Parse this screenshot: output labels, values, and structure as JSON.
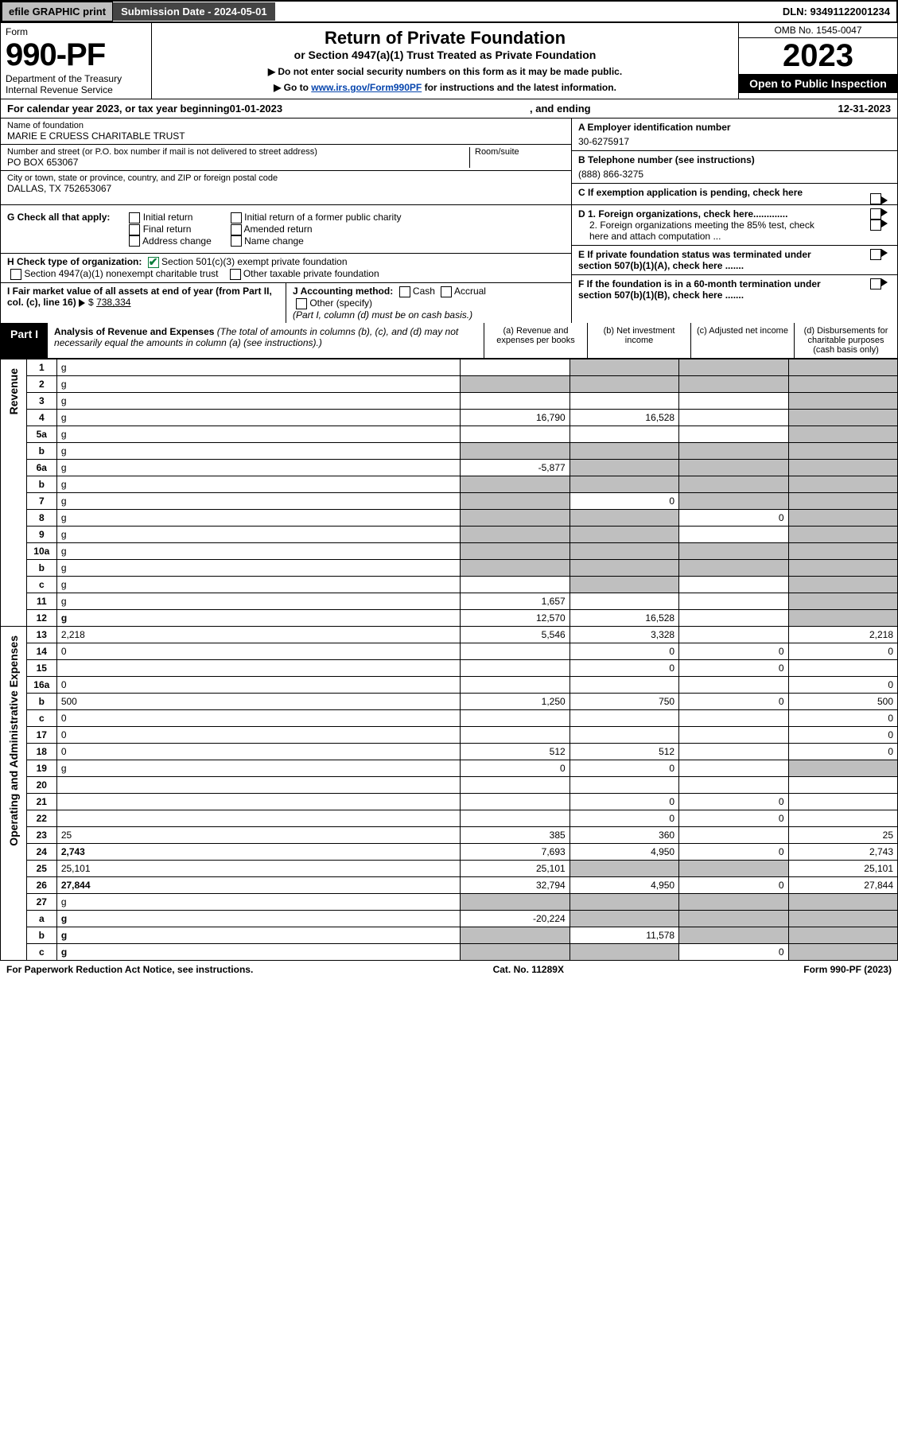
{
  "header": {
    "efile": "efile GRAPHIC print",
    "submission": "Submission Date - 2024-05-01",
    "dln": "DLN: 93491122001234",
    "form_label": "Form",
    "form_number": "990-PF",
    "dept": "Department of the Treasury",
    "irs": "Internal Revenue Service",
    "title": "Return of Private Foundation",
    "subtitle": "or Section 4947(a)(1) Trust Treated as Private Foundation",
    "note1": "▶ Do not enter social security numbers on this form as it may be made public.",
    "note2_pre": "▶ Go to ",
    "note2_link": "www.irs.gov/Form990PF",
    "note2_post": " for instructions and the latest information.",
    "omb": "OMB No. 1545-0047",
    "year": "2023",
    "open": "Open to Public Inspection"
  },
  "calendar": {
    "pre": "For calendar year 2023, or tax year beginning ",
    "begin": "01-01-2023",
    "mid": ", and ending ",
    "end": "12-31-2023"
  },
  "entity": {
    "name_lbl": "Name of foundation",
    "name": "MARIE E CRUESS CHARITABLE TRUST",
    "addr_lbl": "Number and street (or P.O. box number if mail is not delivered to street address)",
    "addr": "PO BOX 653067",
    "room_lbl": "Room/suite",
    "city_lbl": "City or town, state or province, country, and ZIP or foreign postal code",
    "city": "DALLAS, TX  752653067",
    "a_lbl": "A Employer identification number",
    "a_val": "30-6275917",
    "b_lbl": "B Telephone number (see instructions)",
    "b_val": "(888) 866-3275",
    "c_lbl": "C If exemption application is pending, check here",
    "d1_lbl": "D 1. Foreign organizations, check here.............",
    "d2_lbl": "2. Foreign organizations meeting the 85% test, check here and attach computation ...",
    "e_lbl": "E  If private foundation status was terminated under section 507(b)(1)(A), check here .......",
    "f_lbl": "F  If the foundation is in a 60-month termination under section 507(b)(1)(B), check here .......",
    "g_lbl": "G Check all that apply:",
    "g_opts": [
      "Initial return",
      "Final return",
      "Address change",
      "Initial return of a former public charity",
      "Amended return",
      "Name change"
    ],
    "h_lbl": "H Check type of organization:",
    "h1": "Section 501(c)(3) exempt private foundation",
    "h2": "Section 4947(a)(1) nonexempt charitable trust",
    "h3": "Other taxable private foundation",
    "i_lbl": "I Fair market value of all assets at end of year (from Part II, col. (c), line 16)",
    "i_val": "738,334",
    "j_lbl": "J Accounting method:",
    "j_cash": "Cash",
    "j_accr": "Accrual",
    "j_other": "Other (specify)",
    "j_note": "(Part I, column (d) must be on cash basis.)"
  },
  "part1": {
    "label": "Part I",
    "title": "Analysis of Revenue and Expenses",
    "title_note": "(The total of amounts in columns (b), (c), and (d) may not necessarily equal the amounts in column (a) (see instructions).)",
    "col_a": "(a)  Revenue and expenses per books",
    "col_b": "(b)  Net investment income",
    "col_c": "(c)  Adjusted net income",
    "col_d": "(d)  Disbursements for charitable purposes (cash basis only)"
  },
  "sections": {
    "revenue": "Revenue",
    "expenses": "Operating and Administrative Expenses"
  },
  "rows": [
    {
      "n": "1",
      "d": "g",
      "a": "",
      "b": "g",
      "c": "g"
    },
    {
      "n": "2",
      "d": "g",
      "a": "g",
      "b": "g",
      "c": "g"
    },
    {
      "n": "3",
      "d": "g",
      "a": "",
      "b": "",
      "c": ""
    },
    {
      "n": "4",
      "d": "g",
      "a": "16,790",
      "b": "16,528",
      "c": ""
    },
    {
      "n": "5a",
      "d": "g",
      "a": "",
      "b": "",
      "c": ""
    },
    {
      "n": "b",
      "d": "g",
      "a": "g",
      "b": "g",
      "c": "g"
    },
    {
      "n": "6a",
      "d": "g",
      "a": "-5,877",
      "b": "g",
      "c": "g"
    },
    {
      "n": "b",
      "d": "g",
      "a": "g",
      "b": "g",
      "c": "g"
    },
    {
      "n": "7",
      "d": "g",
      "a": "g",
      "b": "0",
      "c": "g"
    },
    {
      "n": "8",
      "d": "g",
      "a": "g",
      "b": "g",
      "c": "0"
    },
    {
      "n": "9",
      "d": "g",
      "a": "g",
      "b": "g",
      "c": ""
    },
    {
      "n": "10a",
      "d": "g",
      "a": "g",
      "b": "g",
      "c": "g"
    },
    {
      "n": "b",
      "d": "g",
      "a": "g",
      "b": "g",
      "c": "g"
    },
    {
      "n": "c",
      "d": "g",
      "a": "",
      "b": "g",
      "c": ""
    },
    {
      "n": "11",
      "d": "g",
      "a": "1,657",
      "b": "",
      "c": ""
    },
    {
      "n": "12",
      "d": "g",
      "a": "12,570",
      "b": "16,528",
      "c": "",
      "bold": true
    },
    {
      "n": "13",
      "d": "2,218",
      "a": "5,546",
      "b": "3,328",
      "c": ""
    },
    {
      "n": "14",
      "d": "0",
      "a": "",
      "b": "0",
      "c": "0"
    },
    {
      "n": "15",
      "d": "",
      "a": "",
      "b": "0",
      "c": "0"
    },
    {
      "n": "16a",
      "d": "0",
      "a": "",
      "b": "",
      "c": ""
    },
    {
      "n": "b",
      "d": "500",
      "a": "1,250",
      "b": "750",
      "c": "0"
    },
    {
      "n": "c",
      "d": "0",
      "a": "",
      "b": "",
      "c": ""
    },
    {
      "n": "17",
      "d": "0",
      "a": "",
      "b": "",
      "c": ""
    },
    {
      "n": "18",
      "d": "0",
      "a": "512",
      "b": "512",
      "c": ""
    },
    {
      "n": "19",
      "d": "g",
      "a": "0",
      "b": "0",
      "c": ""
    },
    {
      "n": "20",
      "d": "",
      "a": "",
      "b": "",
      "c": ""
    },
    {
      "n": "21",
      "d": "",
      "a": "",
      "b": "0",
      "c": "0"
    },
    {
      "n": "22",
      "d": "",
      "a": "",
      "b": "0",
      "c": "0"
    },
    {
      "n": "23",
      "d": "25",
      "a": "385",
      "b": "360",
      "c": ""
    },
    {
      "n": "24",
      "d": "2,743",
      "a": "7,693",
      "b": "4,950",
      "c": "0",
      "bold": true
    },
    {
      "n": "25",
      "d": "25,101",
      "a": "25,101",
      "b": "g",
      "c": "g"
    },
    {
      "n": "26",
      "d": "27,844",
      "a": "32,794",
      "b": "4,950",
      "c": "0",
      "bold": true
    },
    {
      "n": "27",
      "d": "g",
      "a": "g",
      "b": "g",
      "c": "g"
    },
    {
      "n": "a",
      "d": "g",
      "a": "-20,224",
      "b": "g",
      "c": "g",
      "bold": true
    },
    {
      "n": "b",
      "d": "g",
      "a": "g",
      "b": "11,578",
      "c": "g",
      "bold": true
    },
    {
      "n": "c",
      "d": "g",
      "a": "g",
      "b": "g",
      "c": "0",
      "bold": true
    }
  ],
  "footer": {
    "left": "For Paperwork Reduction Act Notice, see instructions.",
    "mid": "Cat. No. 11289X",
    "right": "Form 990-PF (2023)"
  }
}
